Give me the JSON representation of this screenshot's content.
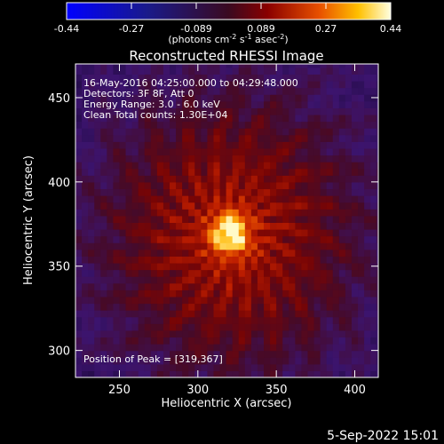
{
  "chart_data": {
    "type": "heatmap",
    "title": "Reconstructed RHESSI Image",
    "xlabel": "Heliocentric X (arcsec)",
    "ylabel": "Heliocentric Y (arcsec)",
    "xlim": [
      222,
      415
    ],
    "ylim": [
      284,
      470
    ],
    "x_ticks": [
      250,
      300,
      350,
      400
    ],
    "y_ticks": [
      300,
      350,
      400,
      450
    ],
    "colorbar": {
      "range": [
        -0.44,
        0.44
      ],
      "ticks": [
        "-0.44",
        "-0.27",
        "-0.089",
        "0.089",
        "0.27",
        "0.44"
      ],
      "unit_text": "(photons cm",
      "unit_sup1": "-2",
      "unit_mid": " s",
      "unit_sup2": "-1",
      "unit_mid2": " asec",
      "unit_sup3": "-2",
      "unit_end": ")"
    },
    "annotations": [
      "16-May-2016 04:25:00.000 to 04:29:48.000",
      "Detectors: 3F 8F, Att 0",
      "Energy Range: 3.0 - 6.0 keV",
      "Clean    Total counts: 1.30E+04"
    ],
    "peak_label": "Position of Peak = [319,367]",
    "peak": [
      319,
      367
    ],
    "colors": {
      "background": "#000000",
      "axes": "#ffffff"
    }
  },
  "footer": {
    "date": "5-Sep-2022 15:01"
  }
}
